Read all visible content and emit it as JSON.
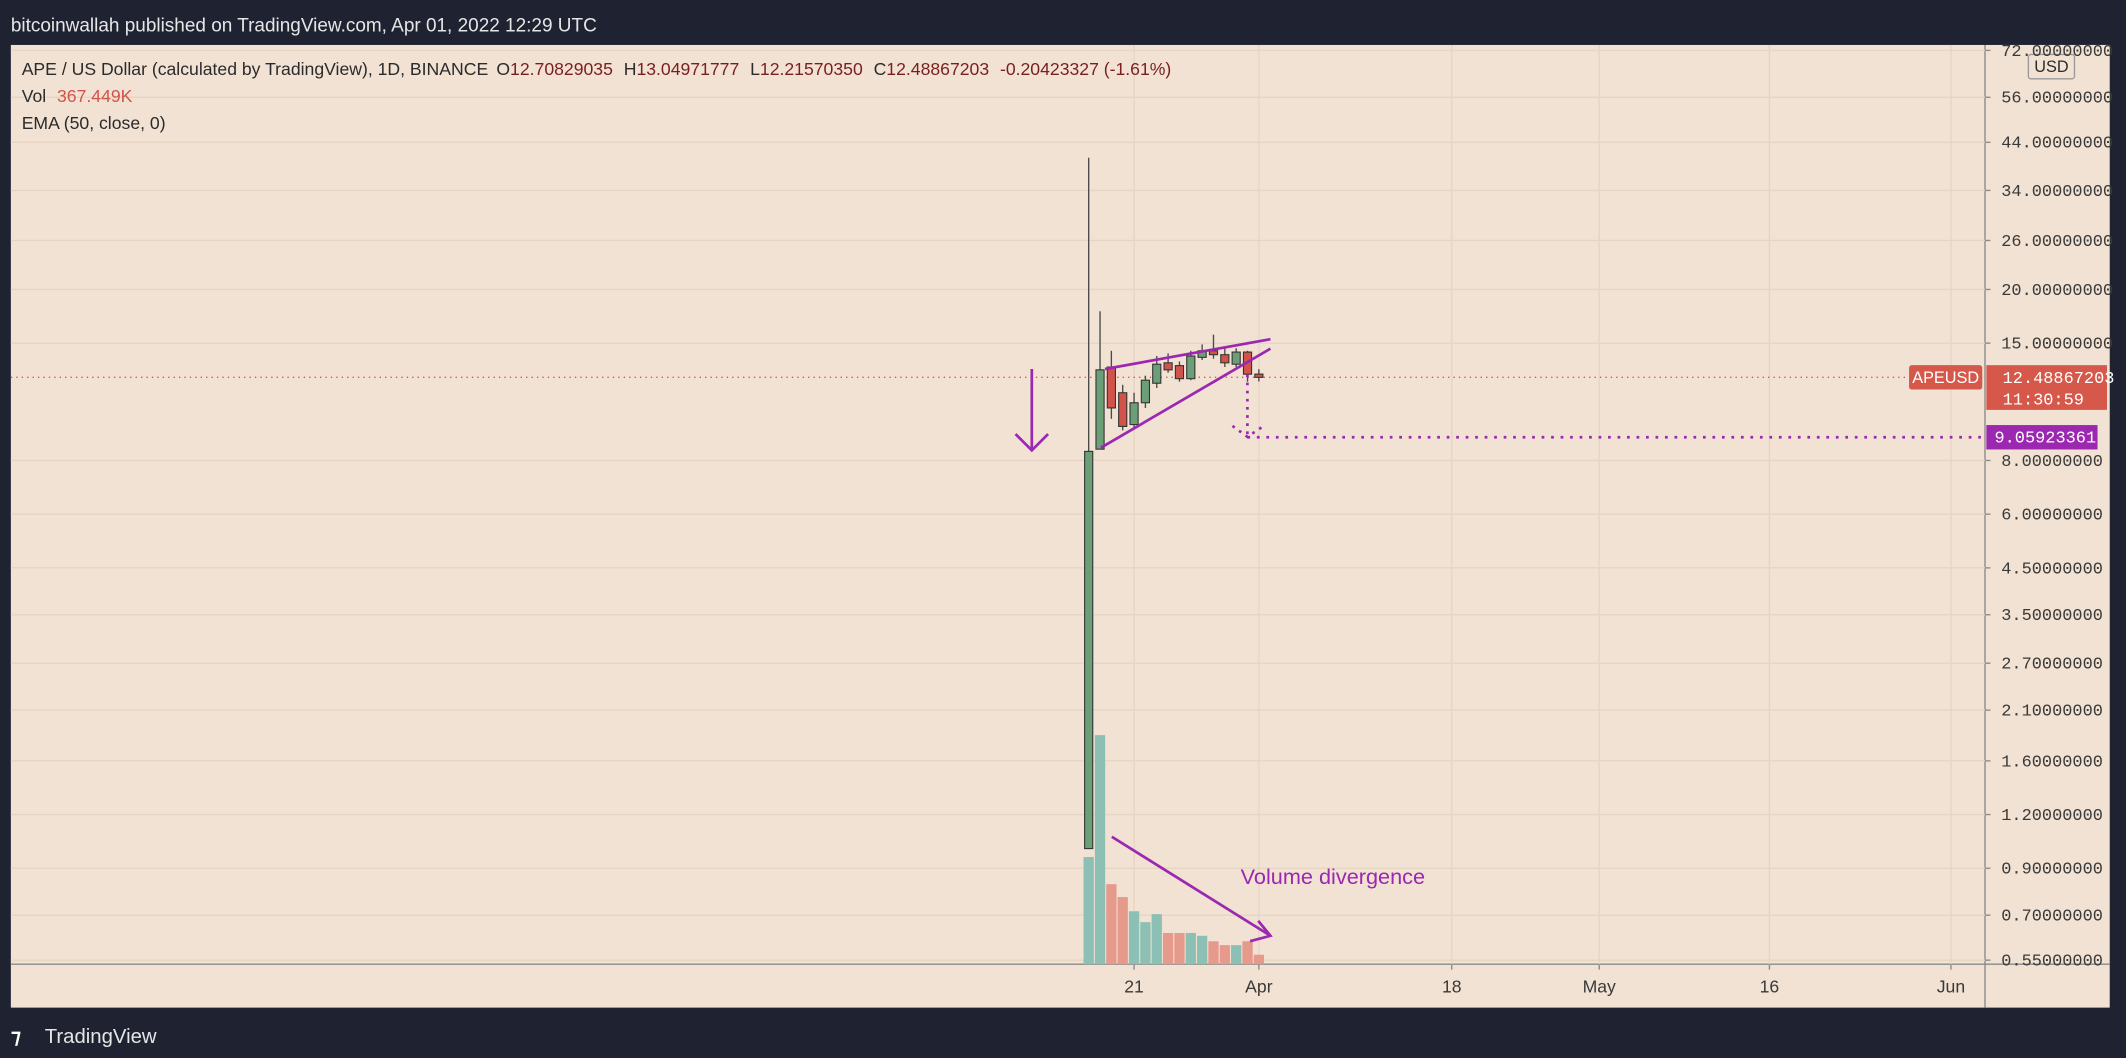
{
  "top_bar": {
    "text": "bitcoinwallah published on TradingView.com, Apr 01, 2022 12:29 UTC"
  },
  "legend": {
    "symbol": "APE / US Dollar (calculated by TradingView), 1D, BINANCE",
    "ohlc": [
      {
        "label": "O",
        "value": "12.70829035"
      },
      {
        "label": "H",
        "value": "13.04971777"
      },
      {
        "label": "L",
        "value": "12.21570350"
      },
      {
        "label": "C",
        "value": "12.48867203"
      }
    ],
    "change": "-0.20423327 (-1.61%)",
    "vol_label": "Vol",
    "vol_value": "367.449K",
    "ema": "EMA (50, close, 0)"
  },
  "footer": {
    "brand": "TradingView"
  },
  "chart_data": {
    "type": "candlestick",
    "x": [
      "Mar 17",
      "Mar 18",
      "Mar 19",
      "Mar 20",
      "Mar 21",
      "Mar 22",
      "Mar 23",
      "Mar 24",
      "Mar 25",
      "Mar 26",
      "Mar 27",
      "Mar 28",
      "Mar 29",
      "Mar 30",
      "Mar 31",
      "Apr 1"
    ],
    "open": [
      1.0,
      8.5,
      13.2,
      11.5,
      9.7,
      10.9,
      12.1,
      13.5,
      13.3,
      12.4,
      13.9,
      14.4,
      14.1,
      13.4,
      14.3,
      12.70829035
    ],
    "high": [
      40.5,
      17.8,
      14.4,
      12.0,
      11.5,
      12.6,
      14.0,
      14.2,
      13.6,
      14.4,
      14.9,
      15.7,
      14.6,
      14.6,
      14.4,
      13.04971777
    ],
    "low": [
      1.0,
      8.5,
      10.0,
      9.4,
      9.5,
      10.6,
      11.8,
      12.8,
      12.2,
      12.3,
      13.7,
      13.8,
      13.2,
      13.2,
      12.2,
      12.2157035
    ],
    "close": [
      8.4,
      13.0,
      10.6,
      9.6,
      10.9,
      12.3,
      13.4,
      13.0,
      12.4,
      14.0,
      14.4,
      14.1,
      13.5,
      14.3,
      12.7,
      12.48867203
    ],
    "volume": [
      4150000,
      8870000,
      3100000,
      2600000,
      2050000,
      1630000,
      1940000,
      1210000,
      1210000,
      1210000,
      1100000,
      890000,
      740000,
      740000,
      890000,
      367449
    ],
    "up_color": "#6a9f78",
    "down_color": "#d0544a",
    "vol_up_color": "#8cc0b4",
    "vol_down_color": "#e69a8c",
    "xlim": [
      "Dec 12",
      "Jun 4"
    ],
    "xticks": [
      {
        "value": "Mar 21",
        "label": "21"
      },
      {
        "value": "Apr 1",
        "label": "Apr"
      },
      {
        "value": "Apr 18",
        "label": "18"
      },
      {
        "value": "May 1",
        "label": "May"
      },
      {
        "value": "May 16",
        "label": "16"
      },
      {
        "value": "Jun 1",
        "label": "Jun"
      }
    ],
    "ylim": [
      0.55,
      72
    ],
    "log_scale": true,
    "grid": true,
    "currency": "USD",
    "yticks": [
      {
        "value": 72,
        "label": "72.00000000"
      },
      {
        "value": 56,
        "label": "56.00000000"
      },
      {
        "value": 44,
        "label": "44.00000000"
      },
      {
        "value": 34,
        "label": "34.00000000"
      },
      {
        "value": 26,
        "label": "26.00000000"
      },
      {
        "value": 20,
        "label": "20.00000000"
      },
      {
        "value": 15,
        "label": "15.00000000"
      },
      {
        "value": 8,
        "label": "8.00000000"
      },
      {
        "value": 6,
        "label": "6.00000000"
      },
      {
        "value": 4.5,
        "label": "4.50000000"
      },
      {
        "value": 3.5,
        "label": "3.50000000"
      },
      {
        "value": 2.7,
        "label": "2.70000000"
      },
      {
        "value": 2.1,
        "label": "2.10000000"
      },
      {
        "value": 1.6,
        "label": "1.60000000"
      },
      {
        "value": 1.2,
        "label": "1.20000000"
      },
      {
        "value": 0.9,
        "label": "0.90000000"
      },
      {
        "value": 0.7,
        "label": "0.70000000"
      },
      {
        "value": 0.55,
        "label": "0.55000000"
      }
    ],
    "price_line": {
      "symbol": "APEUSD",
      "value": 12.48867203,
      "countdown": "11:30:59",
      "color": "#d5584a"
    },
    "target": {
      "value": 9.05923361,
      "color": "#9c27b0"
    },
    "annotation": "Volume divergence"
  }
}
